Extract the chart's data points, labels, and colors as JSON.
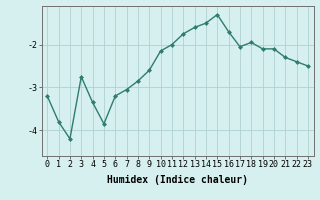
{
  "x": [
    0,
    1,
    2,
    3,
    4,
    5,
    6,
    7,
    8,
    9,
    10,
    11,
    12,
    13,
    14,
    15,
    16,
    17,
    18,
    19,
    20,
    21,
    22,
    23
  ],
  "y": [
    -3.2,
    -3.8,
    -4.2,
    -2.75,
    -3.35,
    -3.85,
    -3.2,
    -3.05,
    -2.85,
    -2.6,
    -2.15,
    -2.0,
    -1.75,
    -1.6,
    -1.5,
    -1.3,
    -1.7,
    -2.05,
    -1.95,
    -2.1,
    -2.1,
    -2.3,
    -2.4,
    -2.5
  ],
  "line_color": "#2e7d6e",
  "marker": "D",
  "marker_size": 2.0,
  "bg_color": "#d6efef",
  "grid_color": "#b0d0d0",
  "xlabel": "Humidex (Indice chaleur)",
  "xlabel_fontsize": 7,
  "yticks": [
    -4,
    -3,
    -2
  ],
  "ylim": [
    -4.6,
    -1.1
  ],
  "xlim": [
    -0.5,
    23.5
  ],
  "xticks": [
    0,
    1,
    2,
    3,
    4,
    5,
    6,
    7,
    8,
    9,
    10,
    11,
    12,
    13,
    14,
    15,
    16,
    17,
    18,
    19,
    20,
    21,
    22,
    23
  ],
  "tick_fontsize": 6.0,
  "line_width": 1.0
}
